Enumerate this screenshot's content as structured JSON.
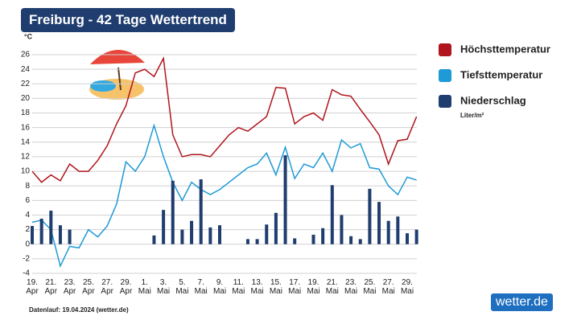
{
  "chart_data": {
    "type": "line",
    "title": "Freiburg - 42 Tage Wettertrend",
    "y_unit": "°C",
    "unit_label": "Liter/m²",
    "footnote": "Datenlauf: 19.04.2024 (wetter.de)",
    "logo": "wetter.de",
    "categories": [
      "19. Apr",
      null,
      "21. Apr",
      null,
      "23. Apr",
      null,
      "25. Apr",
      null,
      "27. Apr",
      null,
      "29. Apr",
      null,
      "1. Mai",
      null,
      "3. Mai",
      null,
      "5. Mai",
      null,
      "7. Mai",
      null,
      "9. Mai",
      null,
      "11. Mai",
      null,
      "13. Mai",
      null,
      "15. Mai",
      null,
      "17. Mai",
      null,
      "19. Mai",
      null,
      "21. Mai",
      null,
      "23. Mai",
      null,
      "25. Mai",
      null,
      "27. Mai",
      null,
      "29. Mai",
      null
    ],
    "series": [
      {
        "name": "Höchsttemperatur",
        "color": "#b0141c",
        "kind": "line",
        "values": [
          10,
          8.5,
          9.5,
          8.7,
          11,
          10,
          10,
          11.5,
          13.5,
          16.5,
          19,
          23.5,
          24,
          23,
          25.5,
          15,
          12,
          12.3,
          12.3,
          12,
          13.5,
          15,
          16,
          15.5,
          16.5,
          17.5,
          21.5,
          21.4,
          16.5,
          17.5,
          18,
          17,
          21.2,
          20.5,
          20.3,
          18.5,
          16.8,
          15,
          11,
          14.2,
          14.4,
          17.5
        ]
      },
      {
        "name": "Tiefsttemperatur",
        "color": "#1e9ad6",
        "kind": "line",
        "values": [
          3,
          3.3,
          2,
          -3,
          -0.3,
          -0.5,
          2,
          1,
          2.5,
          5.5,
          11.3,
          10,
          12,
          16.3,
          12,
          8.5,
          6,
          8.5,
          7.5,
          6.8,
          7.5,
          8.5,
          9.5,
          10.5,
          11,
          12.5,
          9.5,
          13.3,
          9,
          11,
          10.5,
          12.5,
          10,
          14.3,
          13.2,
          13.8,
          10.5,
          10.3,
          8,
          6.8,
          9.2,
          8.8
        ]
      },
      {
        "name": "Niederschlag",
        "color": "#1f3d6e",
        "kind": "bar",
        "values": [
          2.5,
          3.5,
          4.6,
          2.6,
          2,
          0,
          0,
          0,
          0,
          0,
          0,
          0,
          0,
          1.2,
          4.7,
          8.7,
          2,
          3.2,
          8.9,
          2.3,
          2.6,
          0,
          0,
          0.7,
          0.7,
          2.7,
          4.3,
          12.2,
          0.8,
          0,
          1.3,
          2.2,
          8.1,
          4,
          1.1,
          0.7,
          7.6,
          5.8,
          3.2,
          3.8,
          1.5,
          2
        ]
      }
    ],
    "ylim": [
      -4,
      26
    ],
    "yticks": [
      -4,
      -2,
      0,
      2,
      4,
      6,
      8,
      10,
      12,
      14,
      16,
      18,
      20,
      22,
      24,
      26
    ],
    "grid": true
  }
}
